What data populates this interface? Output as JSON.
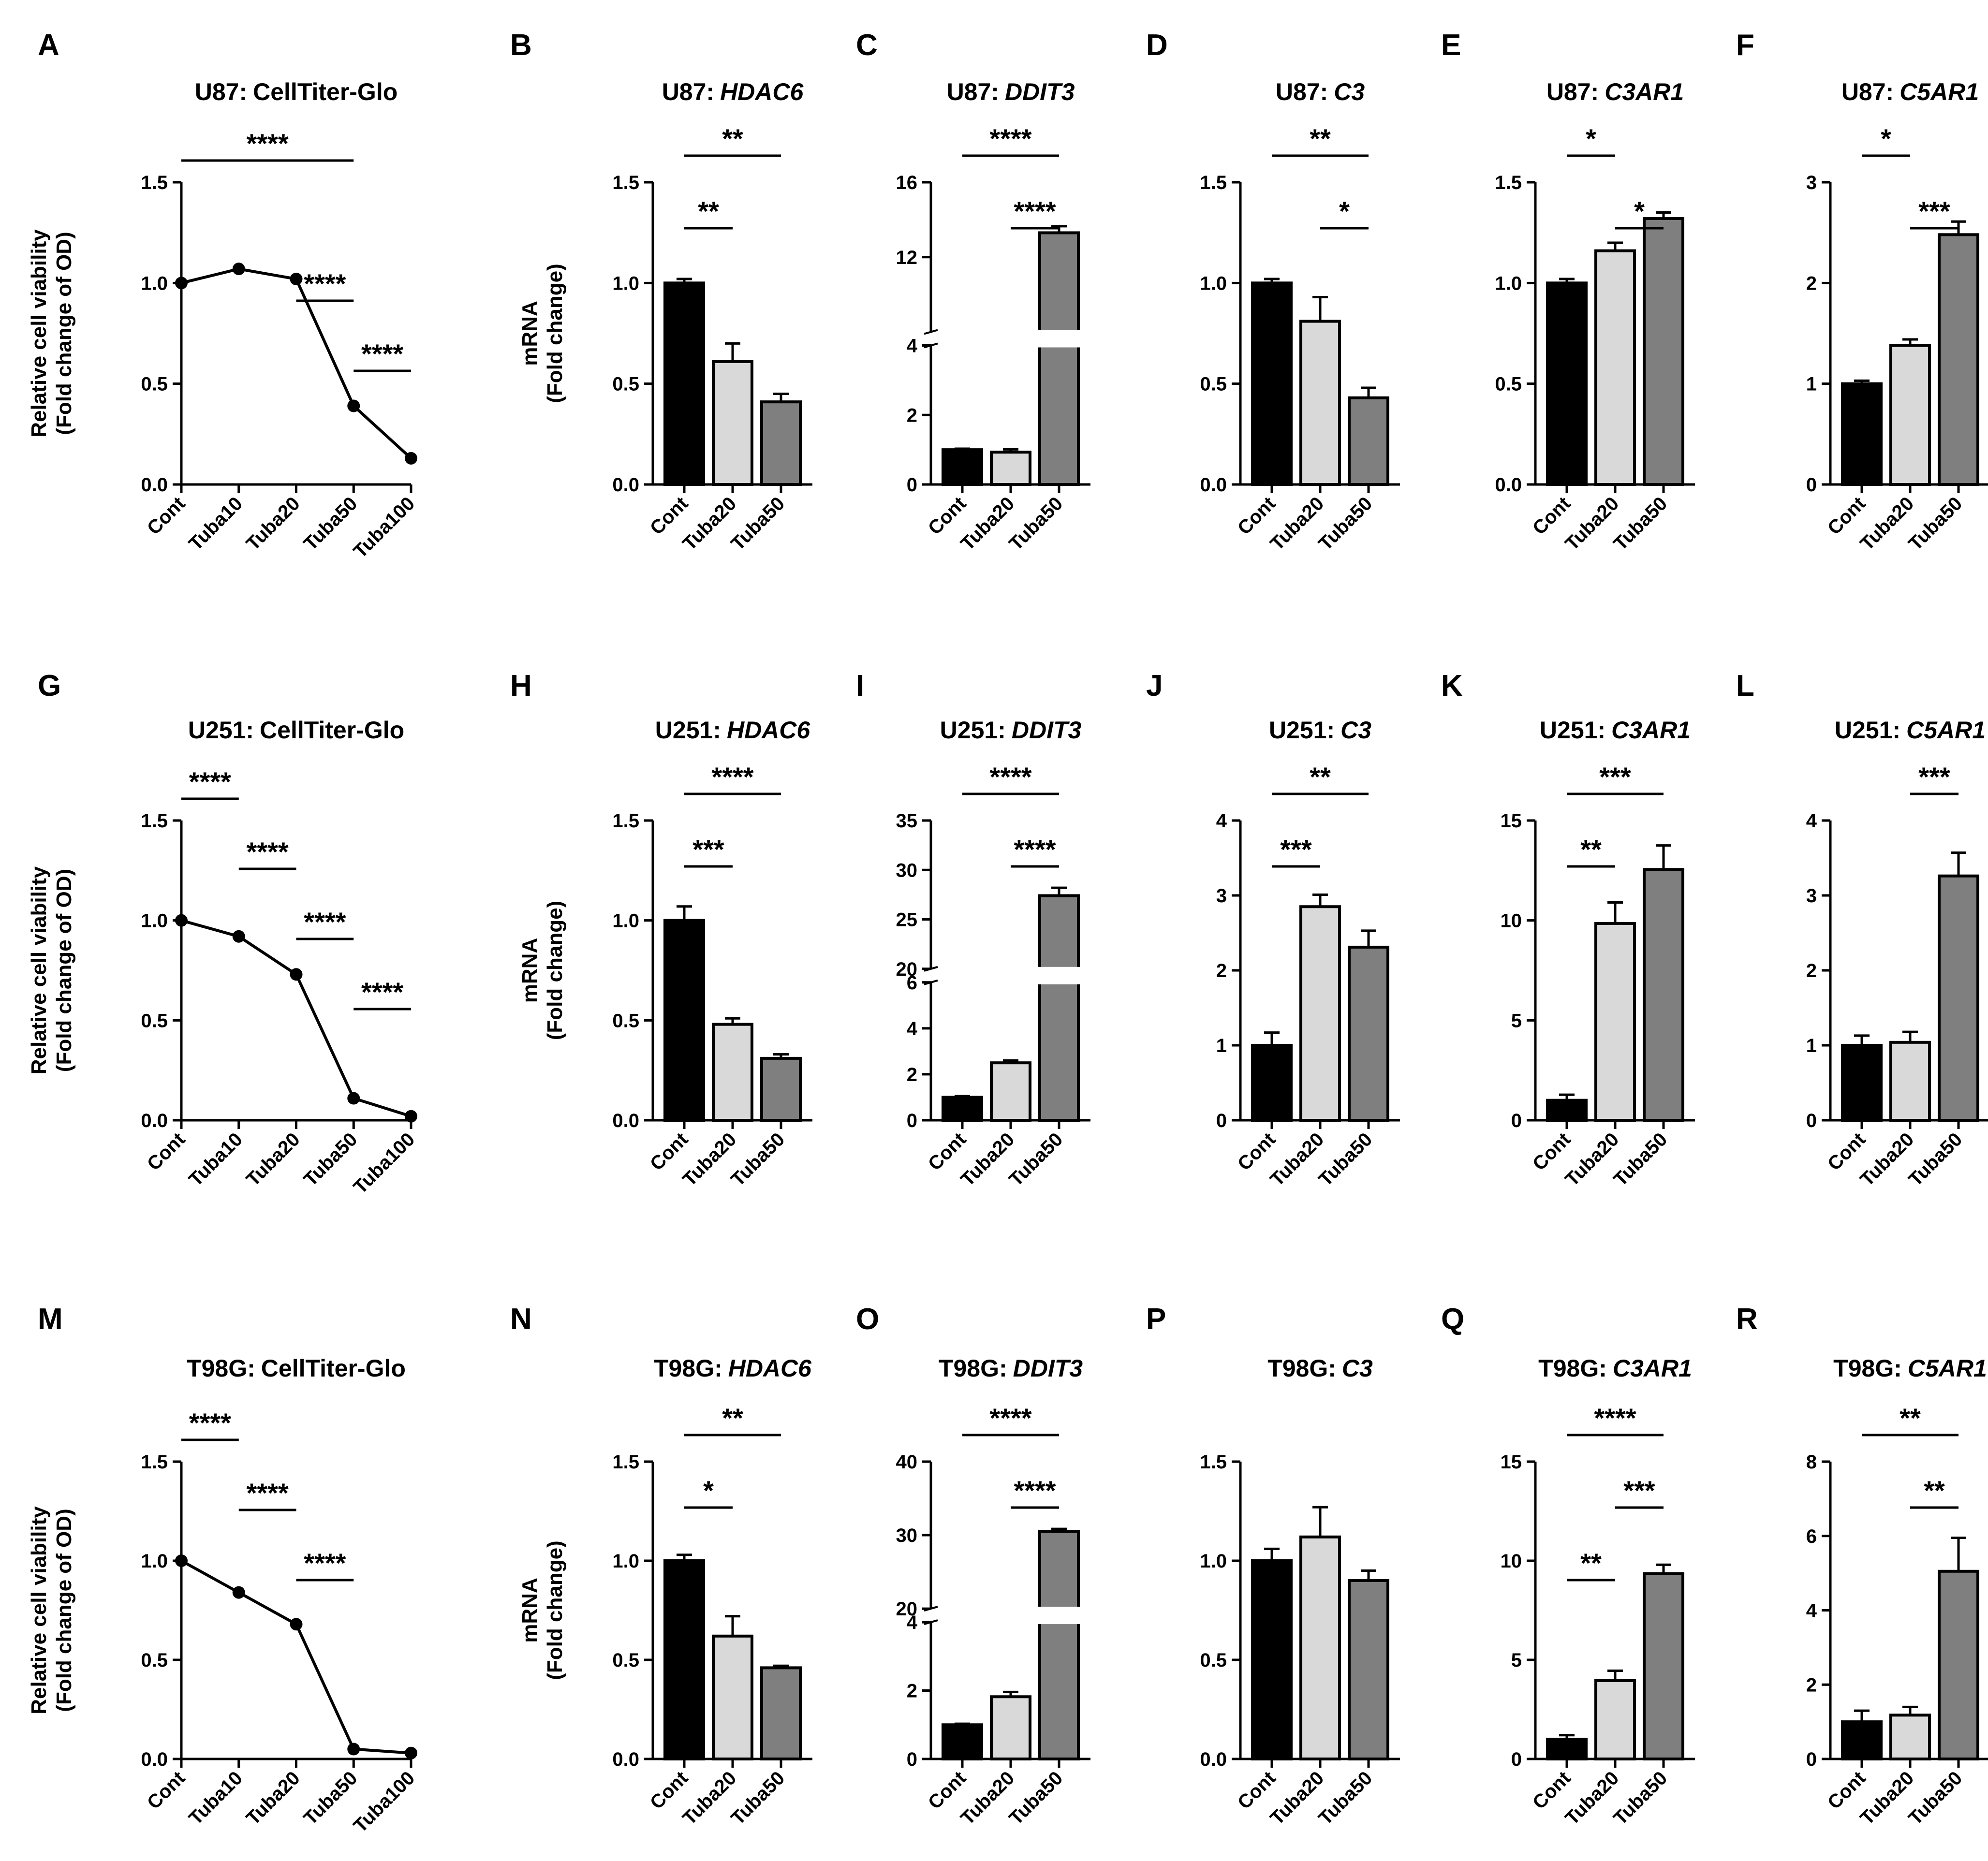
{
  "figure": {
    "categories_line": [
      "Cont",
      "Tuba10",
      "Tuba20",
      "Tuba50",
      "Tuba100"
    ],
    "categories_bar": [
      "Cont",
      "Tuba20",
      "Tuba50"
    ],
    "ylabel_viability": [
      "Relative cell viability",
      "(Fold change of OD)"
    ],
    "ylabel_mrna": [
      "mRNA",
      "(Fold change)"
    ],
    "colors": {
      "bar1": "#000000",
      "bar2": "#d9d9d9",
      "bar3": "#7f7f7f"
    }
  },
  "chart_data": [
    {
      "id": "A",
      "type": "line",
      "title_prefix": "U87:",
      "title_gene": "CellTiter-Glo",
      "title_italic": false,
      "ylabel": "viability",
      "y_range": [
        0,
        1.5
      ],
      "ticks": [
        0,
        0.5,
        1.0,
        1.5
      ],
      "tick_labels": [
        "0.0",
        "0.5",
        "1.0",
        "1.5"
      ],
      "values": [
        1.0,
        1.07,
        1.02,
        0.39,
        0.13
      ],
      "sig": [
        {
          "from": 0,
          "to": 3,
          "text": "****"
        },
        {
          "from": 2,
          "to": 3,
          "text": "****"
        },
        {
          "from": 3,
          "to": 4,
          "text": "****"
        }
      ]
    },
    {
      "id": "B",
      "type": "bar",
      "title_prefix": "U87:",
      "title_gene": "HDAC6",
      "title_italic": true,
      "ylabel": "mrna",
      "y_range": [
        0,
        1.5
      ],
      "ticks": [
        0,
        0.5,
        1.0,
        1.5
      ],
      "tick_labels": [
        "0.0",
        "0.5",
        "1.0",
        "1.5"
      ],
      "values": [
        1.0,
        0.61,
        0.41
      ],
      "errors": [
        0.02,
        0.09,
        0.04
      ],
      "sig": [
        {
          "from": 0,
          "to": 2,
          "text": "**"
        },
        {
          "from": 0,
          "to": 1,
          "text": "**"
        }
      ]
    },
    {
      "id": "C",
      "type": "bar",
      "title_prefix": "U87:",
      "title_gene": "DDIT3",
      "title_italic": true,
      "ylabel": "",
      "break": {
        "lower": [
          0,
          4
        ],
        "upper": [
          8,
          16
        ]
      },
      "ticks": [
        0,
        2,
        4,
        12,
        16
      ],
      "tick_labels": [
        "0",
        "2",
        "4",
        "12",
        "16"
      ],
      "values": [
        1.0,
        0.93,
        13.3
      ],
      "errors": [
        0.03,
        0.08,
        0.35
      ],
      "sig": [
        {
          "from": 0,
          "to": 2,
          "text": "****"
        },
        {
          "from": 1,
          "to": 2,
          "text": "****"
        }
      ]
    },
    {
      "id": "D",
      "type": "bar",
      "title_prefix": "U87:",
      "title_gene": "C3",
      "title_italic": true,
      "ylabel": "",
      "y_range": [
        0,
        1.5
      ],
      "ticks": [
        0,
        0.5,
        1.0,
        1.5
      ],
      "tick_labels": [
        "0.0",
        "0.5",
        "1.0",
        "1.5"
      ],
      "values": [
        1.0,
        0.81,
        0.43
      ],
      "errors": [
        0.02,
        0.12,
        0.05
      ],
      "sig": [
        {
          "from": 0,
          "to": 2,
          "text": "**"
        },
        {
          "from": 1,
          "to": 2,
          "text": "*"
        }
      ]
    },
    {
      "id": "E",
      "type": "bar",
      "title_prefix": "U87:",
      "title_gene": "C3AR1",
      "title_italic": true,
      "ylabel": "",
      "y_range": [
        0,
        1.5
      ],
      "ticks": [
        0,
        0.5,
        1.0,
        1.5
      ],
      "tick_labels": [
        "0.0",
        "0.5",
        "1.0",
        "1.5"
      ],
      "values": [
        1.0,
        1.16,
        1.32
      ],
      "errors": [
        0.02,
        0.04,
        0.03
      ],
      "sig": [
        {
          "from": 0,
          "to": 1,
          "text": "*"
        },
        {
          "from": 1,
          "to": 2,
          "text": "*"
        }
      ]
    },
    {
      "id": "F",
      "type": "bar",
      "title_prefix": "U87:",
      "title_gene": "C5AR1",
      "title_italic": true,
      "ylabel": "",
      "y_range": [
        0,
        3
      ],
      "ticks": [
        0,
        1,
        2,
        3
      ],
      "tick_labels": [
        "0",
        "1",
        "2",
        "3"
      ],
      "values": [
        1.0,
        1.38,
        2.48
      ],
      "errors": [
        0.03,
        0.06,
        0.13
      ],
      "sig": [
        {
          "from": 0,
          "to": 1,
          "text": "*"
        },
        {
          "from": 1,
          "to": 2,
          "text": "***"
        }
      ]
    },
    {
      "id": "G",
      "type": "line",
      "title_prefix": "U251:",
      "title_gene": "CellTiter-Glo",
      "title_italic": false,
      "ylabel": "viability",
      "y_range": [
        0,
        1.5
      ],
      "ticks": [
        0,
        0.5,
        1.0,
        1.5
      ],
      "tick_labels": [
        "0.0",
        "0.5",
        "1.0",
        "1.5"
      ],
      "values": [
        1.0,
        0.92,
        0.73,
        0.11,
        0.02
      ],
      "sig": [
        {
          "from": 0,
          "to": 1,
          "text": "****"
        },
        {
          "from": 1,
          "to": 2,
          "text": "****"
        },
        {
          "from": 2,
          "to": 3,
          "text": "****"
        },
        {
          "from": 3,
          "to": 4,
          "text": "****"
        }
      ]
    },
    {
      "id": "H",
      "type": "bar",
      "title_prefix": "U251:",
      "title_gene": "HDAC6",
      "title_italic": true,
      "ylabel": "mrna",
      "y_range": [
        0,
        1.5
      ],
      "ticks": [
        0,
        0.5,
        1.0,
        1.5
      ],
      "tick_labels": [
        "0.0",
        "0.5",
        "1.0",
        "1.5"
      ],
      "values": [
        1.0,
        0.48,
        0.31
      ],
      "errors": [
        0.07,
        0.03,
        0.02
      ],
      "sig": [
        {
          "from": 0,
          "to": 2,
          "text": "****"
        },
        {
          "from": 0,
          "to": 1,
          "text": "***"
        }
      ]
    },
    {
      "id": "I",
      "type": "bar",
      "title_prefix": "U251:",
      "title_gene": "DDIT3",
      "title_italic": true,
      "ylabel": "",
      "break": {
        "lower": [
          0,
          6
        ],
        "upper": [
          20,
          35
        ]
      },
      "ticks": [
        0,
        2,
        4,
        6,
        20,
        25,
        30,
        35
      ],
      "tick_labels": [
        "0",
        "2",
        "4",
        "6",
        "20",
        "25",
        "30",
        "35"
      ],
      "values": [
        1.0,
        2.5,
        27.4
      ],
      "errors": [
        0.05,
        0.1,
        0.8
      ],
      "sig": [
        {
          "from": 0,
          "to": 2,
          "text": "****"
        },
        {
          "from": 1,
          "to": 2,
          "text": "****"
        }
      ]
    },
    {
      "id": "J",
      "type": "bar",
      "title_prefix": "U251:",
      "title_gene": "C3",
      "title_italic": true,
      "ylabel": "",
      "y_range": [
        0,
        4
      ],
      "ticks": [
        0,
        1,
        2,
        3,
        4
      ],
      "tick_labels": [
        "0",
        "1",
        "2",
        "3",
        "4"
      ],
      "values": [
        1.0,
        2.85,
        2.31
      ],
      "errors": [
        0.17,
        0.16,
        0.22
      ],
      "sig": [
        {
          "from": 0,
          "to": 2,
          "text": "**"
        },
        {
          "from": 0,
          "to": 1,
          "text": "***"
        }
      ]
    },
    {
      "id": "K",
      "type": "bar",
      "title_prefix": "U251:",
      "title_gene": "C3AR1",
      "title_italic": true,
      "ylabel": "",
      "y_range": [
        0,
        15
      ],
      "ticks": [
        0,
        5,
        10,
        15
      ],
      "tick_labels": [
        "0",
        "5",
        "10",
        "15"
      ],
      "values": [
        1.0,
        9.85,
        12.55
      ],
      "errors": [
        0.28,
        1.05,
        1.2
      ],
      "sig": [
        {
          "from": 0,
          "to": 2,
          "text": "***"
        },
        {
          "from": 0,
          "to": 1,
          "text": "**"
        }
      ]
    },
    {
      "id": "L",
      "type": "bar",
      "title_prefix": "U251:",
      "title_gene": "C5AR1",
      "title_italic": true,
      "ylabel": "",
      "y_range": [
        0,
        4
      ],
      "ticks": [
        0,
        1,
        2,
        3,
        4
      ],
      "tick_labels": [
        "0",
        "1",
        "2",
        "3",
        "4"
      ],
      "values": [
        1.0,
        1.04,
        3.26
      ],
      "errors": [
        0.13,
        0.14,
        0.31
      ],
      "sig": [
        {
          "from": 1,
          "to": 2,
          "text": "***"
        }
      ]
    },
    {
      "id": "M",
      "type": "line",
      "title_prefix": "T98G:",
      "title_gene": "CellTiter-Glo",
      "title_italic": false,
      "ylabel": "viability",
      "y_range": [
        0,
        1.5
      ],
      "ticks": [
        0,
        0.5,
        1.0,
        1.5
      ],
      "tick_labels": [
        "0.0",
        "0.5",
        "1.0",
        "1.5"
      ],
      "values": [
        1.0,
        0.84,
        0.68,
        0.05,
        0.03
      ],
      "sig": [
        {
          "from": 0,
          "to": 1,
          "text": "****"
        },
        {
          "from": 1,
          "to": 2,
          "text": "****"
        },
        {
          "from": 2,
          "to": 3,
          "text": "****"
        }
      ]
    },
    {
      "id": "N",
      "type": "bar",
      "title_prefix": "T98G:",
      "title_gene": "HDAC6",
      "title_italic": true,
      "ylabel": "mrna",
      "y_range": [
        0,
        1.5
      ],
      "ticks": [
        0,
        0.5,
        1.0,
        1.5
      ],
      "tick_labels": [
        "0.0",
        "0.5",
        "1.0",
        "1.5"
      ],
      "values": [
        1.0,
        0.62,
        0.46
      ],
      "errors": [
        0.03,
        0.1,
        0.01
      ],
      "sig": [
        {
          "from": 0,
          "to": 2,
          "text": "**"
        },
        {
          "from": 0,
          "to": 1,
          "text": "*"
        }
      ]
    },
    {
      "id": "O",
      "type": "bar",
      "title_prefix": "T98G:",
      "title_gene": "DDIT3",
      "title_italic": true,
      "ylabel": "",
      "break": {
        "lower": [
          0,
          4
        ],
        "upper": [
          20,
          40
        ]
      },
      "ticks": [
        0,
        2,
        4,
        20,
        30,
        40
      ],
      "tick_labels": [
        "0",
        "2",
        "4",
        "20",
        "30",
        "40"
      ],
      "values": [
        1.0,
        1.82,
        30.5
      ],
      "errors": [
        0.03,
        0.14,
        0.35
      ],
      "sig": [
        {
          "from": 0,
          "to": 2,
          "text": "****"
        },
        {
          "from": 1,
          "to": 2,
          "text": "****"
        }
      ]
    },
    {
      "id": "P",
      "type": "bar",
      "title_prefix": "T98G:",
      "title_gene": "C3",
      "title_italic": true,
      "ylabel": "",
      "y_range": [
        0,
        1.5
      ],
      "ticks": [
        0,
        0.5,
        1.0,
        1.5
      ],
      "tick_labels": [
        "0.0",
        "0.5",
        "1.0",
        "1.5"
      ],
      "values": [
        1.0,
        1.12,
        0.9
      ],
      "errors": [
        0.06,
        0.15,
        0.05
      ],
      "sig": []
    },
    {
      "id": "Q",
      "type": "bar",
      "title_prefix": "T98G:",
      "title_gene": "C3AR1",
      "title_italic": true,
      "ylabel": "",
      "y_range": [
        0,
        15
      ],
      "ticks": [
        0,
        5,
        10,
        15
      ],
      "tick_labels": [
        "0",
        "5",
        "10",
        "15"
      ],
      "values": [
        1.0,
        3.95,
        9.35
      ],
      "errors": [
        0.2,
        0.5,
        0.45
      ],
      "sig": [
        {
          "from": 0,
          "to": 2,
          "text": "****"
        },
        {
          "from": 1,
          "to": 2,
          "text": "***"
        },
        {
          "from": 0,
          "to": 1,
          "text": "**"
        }
      ]
    },
    {
      "id": "R",
      "type": "bar",
      "title_prefix": "T98G:",
      "title_gene": "C5AR1",
      "title_italic": true,
      "ylabel": "",
      "y_range": [
        0,
        8
      ],
      "ticks": [
        0,
        2,
        4,
        6,
        8
      ],
      "tick_labels": [
        "0",
        "2",
        "4",
        "6",
        "8"
      ],
      "values": [
        1.0,
        1.18,
        5.05
      ],
      "errors": [
        0.3,
        0.22,
        0.9
      ],
      "sig": [
        {
          "from": 0,
          "to": 2,
          "text": "**"
        },
        {
          "from": 1,
          "to": 2,
          "text": "**"
        }
      ]
    }
  ]
}
